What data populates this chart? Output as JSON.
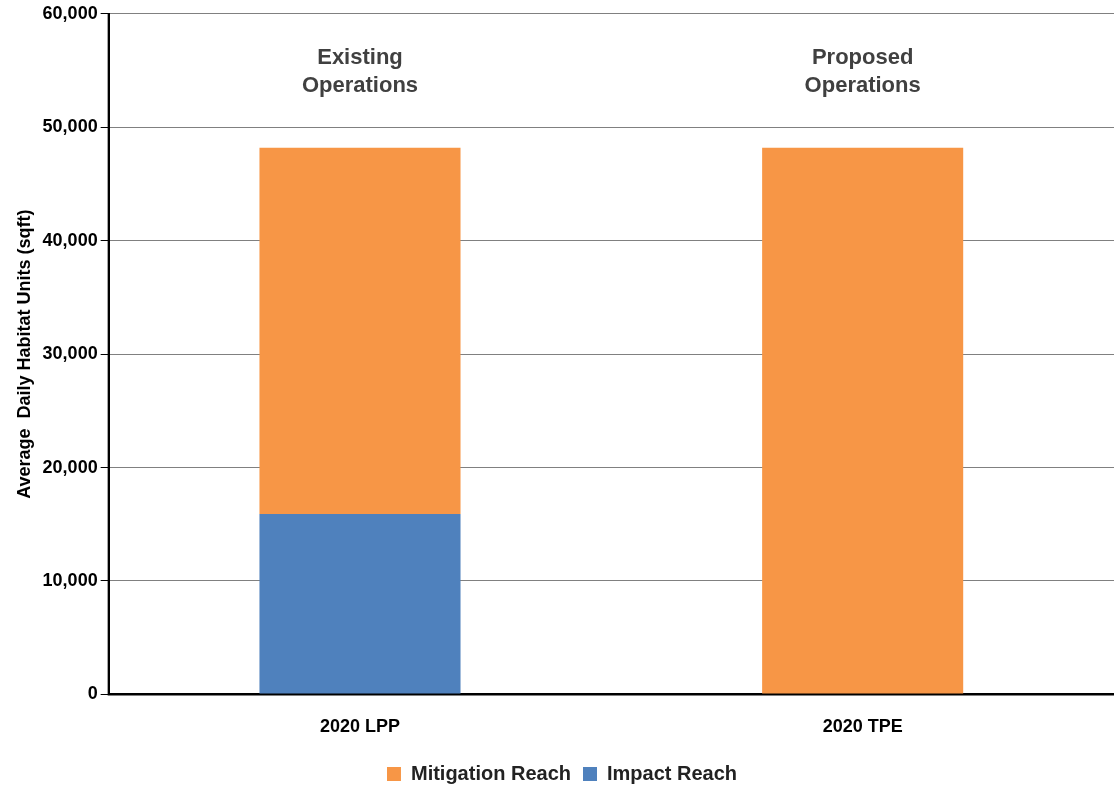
{
  "chart_data": {
    "type": "bar",
    "stacked": true,
    "ylabel": "Average  Daily Habitat Units (sqft)",
    "categories": [
      "2020 LPP",
      "2020 TPE"
    ],
    "series": [
      {
        "name": "Impact Reach",
        "color": "#4f81bd",
        "values": [
          15900,
          0
        ]
      },
      {
        "name": "Mitigation Reach",
        "color": "#f79646",
        "values": [
          32300,
          48200
        ]
      }
    ],
    "ylim": [
      0,
      60000
    ],
    "yticks": [
      0,
      {
        "value": 10000,
        "label": "10,000"
      },
      {
        "value": 20000,
        "label": "20,000"
      },
      {
        "value": 30000,
        "label": "30,000"
      },
      {
        "value": 40000,
        "label": "40,000"
      },
      {
        "value": 50000,
        "label": "50,000"
      },
      {
        "value": 60000,
        "label": "60,000"
      }
    ],
    "grid": "y",
    "legend": "bottom",
    "annotations": [
      "Existing Operations",
      "Proposed Operations"
    ]
  }
}
